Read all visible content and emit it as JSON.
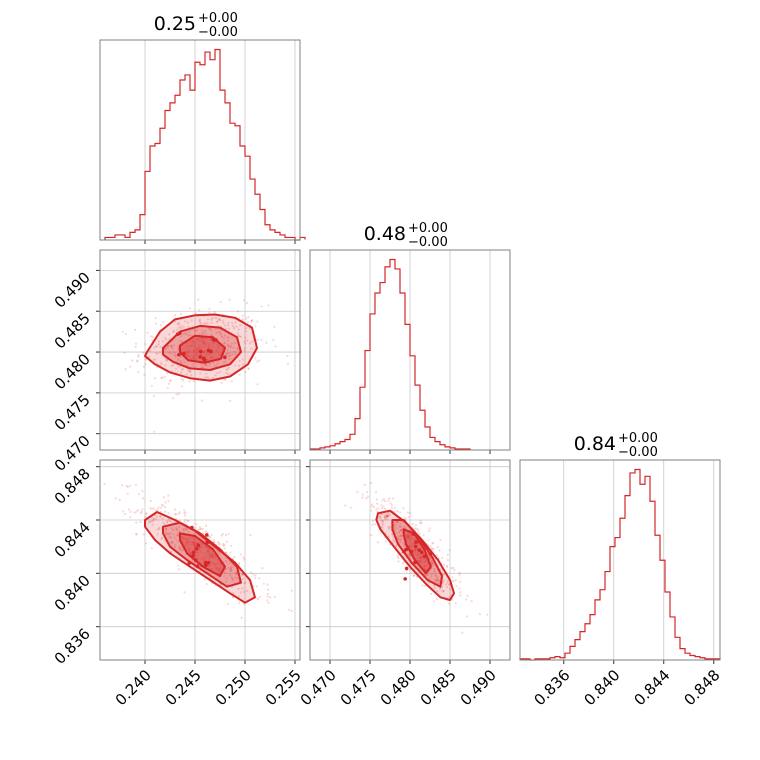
{
  "chart_data": [
    {
      "type": "histogram",
      "title": {
        "value": "0.25",
        "plus": "+0.00",
        "minus": "−0.00"
      },
      "xlim": [
        0.2355,
        0.2555
      ],
      "bins_start": 0.236,
      "bin_width": 0.0005,
      "counts": [
        1,
        1,
        2,
        2,
        1,
        3,
        4,
        10,
        27,
        37,
        38,
        44,
        51,
        54,
        57,
        63,
        65,
        59,
        70,
        69,
        74,
        71,
        75,
        59,
        54,
        46,
        45,
        37,
        33,
        24,
        18,
        12,
        6,
        4,
        3,
        2,
        1,
        1,
        0,
        1
      ],
      "color": "#d62728",
      "xticks": [
        "0.240",
        "0.245",
        "0.250",
        "0.255"
      ]
    },
    {
      "type": "histogram",
      "title": {
        "value": "0.48",
        "plus": "+0.00",
        "minus": "−0.00"
      },
      "xlim": [
        0.4675,
        0.4925
      ],
      "bins_start": 0.4675,
      "bin_width": 0.000625,
      "counts": [
        1,
        1,
        2,
        3,
        4,
        6,
        8,
        10,
        15,
        30,
        60,
        95,
        130,
        150,
        160,
        175,
        182,
        173,
        150,
        120,
        90,
        62,
        38,
        22,
        12,
        8,
        5,
        3,
        2,
        1,
        1,
        1
      ],
      "color": "#d62728",
      "xticks": [
        "0.470",
        "0.475",
        "0.480",
        "0.485",
        "0.490"
      ]
    },
    {
      "type": "histogram",
      "title": {
        "value": "0.84",
        "plus": "+0.00",
        "minus": "−0.00"
      },
      "xlim": [
        0.8325,
        0.8485
      ],
      "bins_start": 0.8325,
      "bin_width": 0.0004,
      "counts": [
        1,
        1,
        0,
        1,
        1,
        1,
        2,
        3,
        2,
        6,
        12,
        18,
        25,
        32,
        40,
        53,
        62,
        78,
        100,
        108,
        125,
        145,
        165,
        168,
        155,
        162,
        140,
        110,
        88,
        60,
        38,
        20,
        10,
        6,
        4,
        3,
        2,
        1,
        1,
        1
      ],
      "color": "#d62728",
      "xticks": [
        "0.836",
        "0.840",
        "0.844",
        "0.848"
      ]
    },
    {
      "type": "scatter",
      "subtype": "density-contour",
      "x_param_index": 0,
      "y_param_index": 1,
      "xlim": [
        0.2355,
        0.2555
      ],
      "ylim": [
        0.468,
        0.4925
      ],
      "center": [
        0.2457,
        0.4805
      ],
      "contours": [
        {
          "level": "outer",
          "x": [
            0.2402,
            0.2415,
            0.243,
            0.245,
            0.247,
            0.249,
            0.2507,
            0.2512,
            0.2503,
            0.2485,
            0.2465,
            0.2445,
            0.2425,
            0.241,
            0.24
          ],
          "y": [
            0.48,
            0.4825,
            0.484,
            0.4845,
            0.4846,
            0.4842,
            0.483,
            0.4805,
            0.4785,
            0.477,
            0.4765,
            0.4768,
            0.4775,
            0.4785,
            0.4795
          ]
        },
        {
          "level": "middle",
          "x": [
            0.2418,
            0.2435,
            0.2455,
            0.2475,
            0.2492,
            0.2496,
            0.2485,
            0.2465,
            0.2445,
            0.2428,
            0.2418
          ],
          "y": [
            0.4805,
            0.4825,
            0.4832,
            0.483,
            0.4818,
            0.48,
            0.4785,
            0.4778,
            0.478,
            0.4788,
            0.4797
          ]
        },
        {
          "level": "inner",
          "x": [
            0.2435,
            0.245,
            0.2468,
            0.248,
            0.2476,
            0.246,
            0.2443,
            0.2435
          ],
          "y": [
            0.4808,
            0.482,
            0.4818,
            0.4805,
            0.4792,
            0.4787,
            0.479,
            0.48
          ]
        }
      ],
      "xticks": [
        "0.240",
        "0.245",
        "0.250",
        "0.255"
      ],
      "yticks": [
        "0.470",
        "0.475",
        "0.480",
        "0.485",
        "0.490"
      ]
    },
    {
      "type": "scatter",
      "subtype": "density-contour",
      "x_param_index": 0,
      "y_param_index": 2,
      "xlim": [
        0.2355,
        0.2555
      ],
      "ylim": [
        0.8335,
        0.8485
      ],
      "center": [
        0.2455,
        0.8418
      ],
      "contours": [
        {
          "level": "outer",
          "x": [
            0.24,
            0.2412,
            0.243,
            0.245,
            0.247,
            0.249,
            0.2505,
            0.251,
            0.25,
            0.2485,
            0.2465,
            0.2445,
            0.2425,
            0.241,
            0.24
          ],
          "y": [
            0.844,
            0.8446,
            0.844,
            0.8432,
            0.842,
            0.8408,
            0.8395,
            0.8382,
            0.8378,
            0.8385,
            0.8395,
            0.8405,
            0.8415,
            0.8425,
            0.8435
          ]
        },
        {
          "level": "middle",
          "x": [
            0.2418,
            0.2435,
            0.2455,
            0.2475,
            0.2492,
            0.2496,
            0.2482,
            0.2462,
            0.2442,
            0.2425,
            0.2418
          ],
          "y": [
            0.8435,
            0.8438,
            0.843,
            0.8418,
            0.8405,
            0.8393,
            0.839,
            0.84,
            0.841,
            0.842,
            0.843
          ]
        },
        {
          "level": "inner",
          "x": [
            0.2435,
            0.245,
            0.2468,
            0.248,
            0.2475,
            0.2458,
            0.2442,
            0.2435
          ],
          "y": [
            0.843,
            0.8428,
            0.8418,
            0.8405,
            0.8398,
            0.8405,
            0.8415,
            0.8425
          ]
        }
      ],
      "xticks": [
        "0.240",
        "0.245",
        "0.250",
        "0.255"
      ],
      "yticks": [
        "0.836",
        "0.840",
        "0.844",
        "0.848"
      ]
    },
    {
      "type": "scatter",
      "subtype": "density-contour",
      "x_param_index": 1,
      "y_param_index": 2,
      "xlim": [
        0.4675,
        0.4925
      ],
      "ylim": [
        0.8335,
        0.8485
      ],
      "center": [
        0.4808,
        0.8418
      ],
      "contours": [
        {
          "level": "outer",
          "x": [
            0.476,
            0.4775,
            0.4795,
            0.4815,
            0.4835,
            0.485,
            0.4855,
            0.485,
            0.4838,
            0.482,
            0.48,
            0.478,
            0.4763,
            0.4758
          ],
          "y": [
            0.8445,
            0.8447,
            0.8438,
            0.8425,
            0.841,
            0.8395,
            0.8385,
            0.838,
            0.8382,
            0.8392,
            0.8405,
            0.842,
            0.8433,
            0.844
          ]
        },
        {
          "level": "middle",
          "x": [
            0.4778,
            0.4792,
            0.481,
            0.4828,
            0.484,
            0.4838,
            0.4822,
            0.4802,
            0.4785,
            0.4778
          ],
          "y": [
            0.844,
            0.844,
            0.8428,
            0.8412,
            0.8398,
            0.839,
            0.8395,
            0.8408,
            0.8422,
            0.8433
          ]
        },
        {
          "level": "inner",
          "x": [
            0.4792,
            0.4805,
            0.4818,
            0.4826,
            0.482,
            0.4806,
            0.4795,
            0.4792
          ],
          "y": [
            0.8433,
            0.843,
            0.8418,
            0.8405,
            0.84,
            0.841,
            0.8422,
            0.843
          ]
        }
      ],
      "xticks": [
        "0.470",
        "0.475",
        "0.480",
        "0.485",
        "0.490"
      ],
      "yticks": [
        "0.836",
        "0.840",
        "0.844",
        "0.848"
      ]
    }
  ]
}
